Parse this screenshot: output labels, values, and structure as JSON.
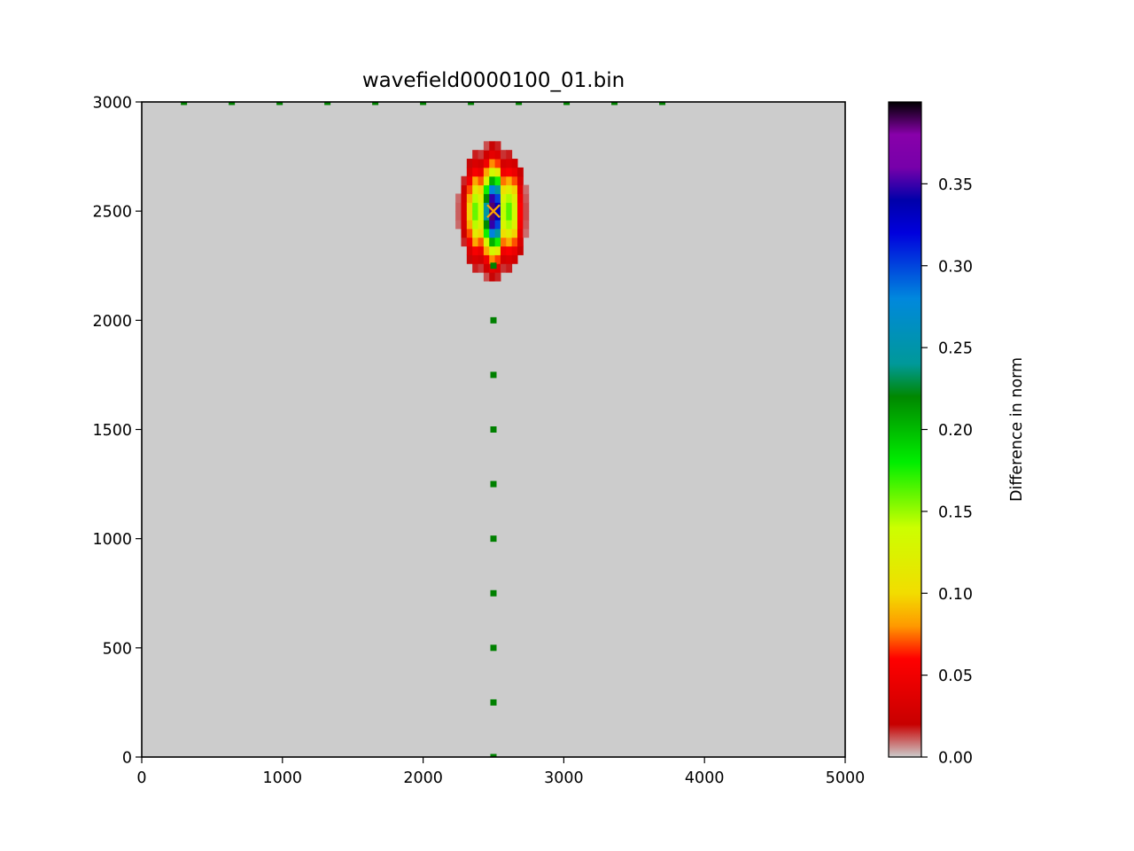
{
  "chart_data": {
    "type": "heatmap",
    "title": "wavefield0000100_01.bin",
    "xlabel": "",
    "ylabel": "",
    "xlim": [
      0,
      5000
    ],
    "ylim": [
      0,
      3000
    ],
    "xticks": [
      "0",
      "1000",
      "2000",
      "3000",
      "4000",
      "5000"
    ],
    "yticks": [
      "0",
      "500",
      "1000",
      "1500",
      "2000",
      "2500",
      "3000"
    ],
    "background_color": "#cccccc",
    "colorbar": {
      "label": "Difference in norm",
      "range": [
        0,
        0.4
      ],
      "ticks": [
        "0.00",
        "0.05",
        "0.10",
        "0.15",
        "0.20",
        "0.25",
        "0.30",
        "0.35"
      ],
      "colormap": "nipy_spectral_r"
    },
    "source": {
      "x": 2500,
      "y": 2500,
      "marker": "x",
      "color": "#ffa500"
    },
    "receivers_surface": {
      "marker": "square",
      "color": "#008000",
      "x": [
        300,
        640,
        980,
        1320,
        1660,
        2000,
        2340,
        2680,
        3020,
        3360,
        3700
      ],
      "y": 3000
    },
    "receivers_well": {
      "marker": "square",
      "color": "#008000",
      "x": 2500,
      "y": [
        0,
        250,
        500,
        750,
        1000,
        1250,
        1500,
        1750,
        2000,
        2250
      ]
    },
    "wavefield_anomaly": {
      "center_x": 2500,
      "center_y": 2500,
      "half_width_x": 250,
      "half_height_y": 300,
      "peak_value": 0.4
    }
  }
}
